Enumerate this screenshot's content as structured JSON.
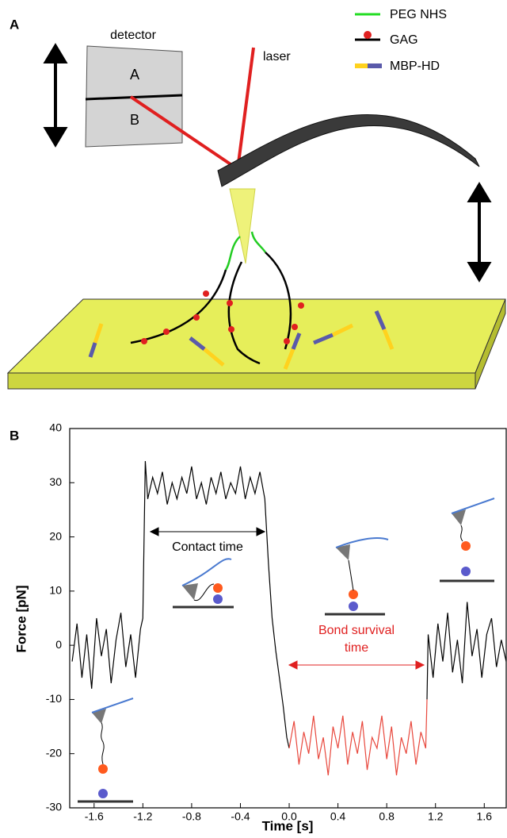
{
  "panel_a": {
    "label": "A",
    "detector": "detector",
    "segment_top": "A",
    "segment_bottom": "B",
    "laser": "laser",
    "legend": [
      "PEG NHS",
      "GAG",
      "MBP-HD"
    ]
  },
  "chart_data": {
    "type": "line",
    "panel_label": "B",
    "xlabel": "Time  [s]",
    "ylabel": "Force  [pN]",
    "xlim": [
      -1.8,
      1.78
    ],
    "ylim": [
      -30,
      40
    ],
    "xticks": [
      -1.6,
      -1.2,
      -0.8,
      -0.4,
      {
        "value": 0,
        "label": "0.0"
      },
      0.4,
      0.8,
      1.2,
      1.6
    ],
    "yticks": [
      40,
      30,
      20,
      10,
      0,
      -10,
      -20,
      -30
    ],
    "annotations": [
      "Contact time",
      "Bond survival",
      "time"
    ],
    "series": [
      {
        "color": "#000000",
        "x": [
          -1.78,
          -1.74,
          -1.7,
          -1.66,
          -1.62,
          -1.58,
          -1.54,
          -1.5,
          -1.46,
          -1.42,
          -1.38,
          -1.34,
          -1.3,
          -1.26,
          -1.22,
          -1.2,
          -1.19,
          -1.18,
          -1.16,
          -1.12,
          -1.08,
          -1.04,
          -1.0,
          -0.96,
          -0.92,
          -0.88,
          -0.84,
          -0.8,
          -0.76,
          -0.72,
          -0.68,
          -0.64,
          -0.6,
          -0.56,
          -0.52,
          -0.48,
          -0.44,
          -0.4,
          -0.36,
          -0.32,
          -0.28,
          -0.24,
          -0.2,
          -0.17,
          -0.14,
          -0.11,
          -0.08,
          -0.05,
          -0.02,
          0,
          0.5,
          1.13,
          1.14,
          1.18,
          1.22,
          1.26,
          1.3,
          1.34,
          1.38,
          1.42,
          1.46,
          1.5,
          1.54,
          1.58,
          1.62,
          1.66,
          1.7,
          1.74,
          1.78
        ],
        "values": [
          -3,
          4,
          -6,
          2,
          -8,
          5,
          -2,
          3,
          -7,
          1,
          6,
          -4,
          2,
          -6,
          3,
          5,
          20,
          34,
          27,
          31,
          28,
          32,
          26,
          30,
          27,
          31,
          28,
          33,
          27,
          30,
          26,
          31,
          28,
          32,
          27,
          30,
          28,
          33,
          27,
          31,
          28,
          32,
          27,
          15,
          5,
          -1,
          -6,
          -11,
          -17,
          -19,
          null,
          -10,
          2,
          -6,
          4,
          -3,
          6,
          -5,
          1,
          -7,
          8,
          -2,
          3,
          -6,
          2,
          5,
          -4,
          1,
          -3
        ]
      },
      {
        "color": "#e8473c",
        "x": [
          0,
          0.04,
          0.08,
          0.12,
          0.16,
          0.2,
          0.24,
          0.28,
          0.32,
          0.36,
          0.4,
          0.44,
          0.48,
          0.52,
          0.56,
          0.6,
          0.64,
          0.68,
          0.72,
          0.76,
          0.8,
          0.84,
          0.88,
          0.92,
          0.96,
          1.0,
          1.04,
          1.08,
          1.12,
          1.13
        ],
        "values": [
          -19,
          -14,
          -22,
          -16,
          -20,
          -13,
          -21,
          -17,
          -24,
          -15,
          -19,
          -13,
          -22,
          -16,
          -20,
          -14,
          -23,
          -17,
          -19,
          -13,
          -21,
          -15,
          -24,
          -17,
          -20,
          -14,
          -22,
          -16,
          -19,
          -10
        ]
      }
    ]
  }
}
